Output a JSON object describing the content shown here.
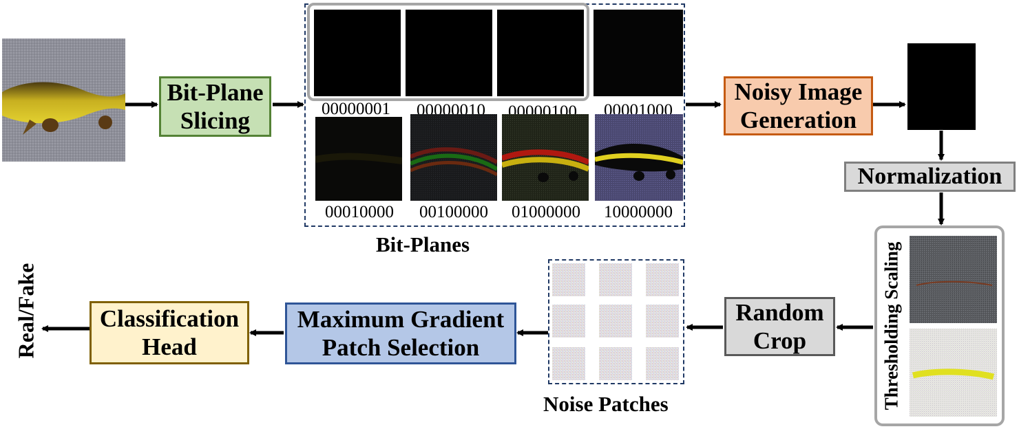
{
  "boxes": {
    "bit_plane_slicing": "Bit-Plane Slicing",
    "noisy_image_generation": "Noisy Image Generation",
    "normalization": "Normalization",
    "random_crop": "Random Crop",
    "max_gradient": "Maximum Gradient Patch Selection",
    "classification_head": "Classification Head"
  },
  "bit_planes": {
    "title": "Bit-Planes",
    "labels": [
      "00000001",
      "00000010",
      "00000100",
      "00001000",
      "00010000",
      "00100000",
      "01000000",
      "10000000"
    ]
  },
  "thresholding_scaling_label": "Thresholding Scaling",
  "noise_patches_title": "Noise Patches",
  "output_label": "Real/Fake",
  "colors": {
    "bit_plane_fill": "#c6e0b4",
    "bit_plane_border": "#548235",
    "noisy_fill": "#f8cbad",
    "noisy_border": "#c55a11",
    "normalization_fill": "#d9d9d9",
    "normalization_border": "#7f7f7f",
    "random_crop_fill": "#d9d9d9",
    "random_crop_border": "#595959",
    "max_gradient_fill": "#b4c7e7",
    "max_gradient_border": "#2f5597",
    "classification_fill": "#fff2cc",
    "classification_border": "#7f6000"
  },
  "icons": [
    "fish-image",
    "black-noise-image",
    "noise-patch"
  ]
}
